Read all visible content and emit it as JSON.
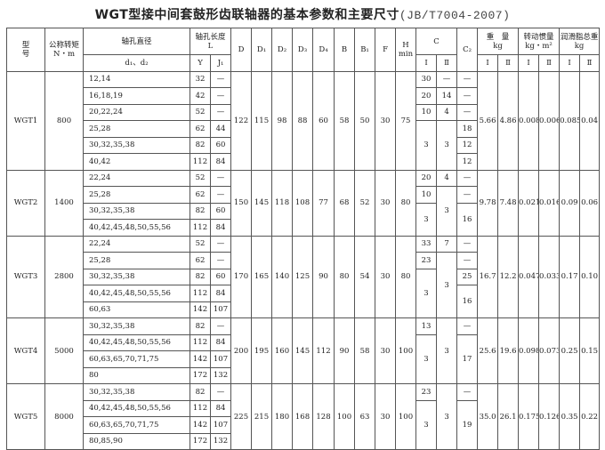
{
  "title": {
    "main": "WGT型接中间套鼓形齿联轴器的基本参数和主要尺寸",
    "code": "(JB/T7004-2007)"
  },
  "header": {
    "model": "型\n号",
    "model_top": "型",
    "model_bottom": "号",
    "torque": "公称转矩",
    "torque_unit": "N・m",
    "bore": "轴孔直径",
    "bore_sub": "d₁、d₂",
    "length": "轴孔长度",
    "length_unit": "L",
    "Y": "Y",
    "J1": "J₁",
    "dims": [
      "D",
      "D₁",
      "D₂",
      "D₃",
      "D₄",
      "B",
      "B₁",
      "F"
    ],
    "H": "H",
    "H_sub": "min",
    "C": "C",
    "C2": "C₂",
    "weight": "重　量",
    "weight_unit": "kg",
    "inertia": "转动惯量",
    "inertia_unit": "kg・m²",
    "grease": "润滑脂总重",
    "grease_unit": "kg",
    "I": "Ⅰ",
    "II": "Ⅱ"
  },
  "groups": [
    {
      "model": "WGT1",
      "torque": "800",
      "bores": [
        {
          "d": "12,14",
          "Y": "32",
          "J": "—"
        },
        {
          "d": "16,18,19",
          "Y": "42",
          "J": "—"
        },
        {
          "d": "20,22,24",
          "Y": "52",
          "J": "—"
        },
        {
          "d": "25,28",
          "Y": "62",
          "J": "44"
        },
        {
          "d": "30,32,35,38",
          "Y": "82",
          "J": "60"
        },
        {
          "d": "40,42",
          "Y": "112",
          "J": "84"
        }
      ],
      "dims": [
        "122",
        "115",
        "98",
        "88",
        "60",
        "58",
        "50",
        "30",
        "75"
      ],
      "C1": [
        {
          "v": "30",
          "s": 1
        },
        {
          "v": "20",
          "s": 1
        },
        {
          "v": "10",
          "s": 1
        },
        {
          "v": "3",
          "s": 3
        }
      ],
      "C2nd": [
        {
          "v": "—",
          "s": 1
        },
        {
          "v": "14",
          "s": 1
        },
        {
          "v": "4",
          "s": 1
        },
        {
          "v": "3",
          "s": 3
        }
      ],
      "Cc2": [
        {
          "v": "—",
          "s": 1
        },
        {
          "v": "—",
          "s": 1
        },
        {
          "v": "—",
          "s": 1
        },
        {
          "v": "18",
          "s": 1
        },
        {
          "v": "12",
          "s": 1
        },
        {
          "v": "12",
          "s": 1
        }
      ],
      "tail": [
        "5.66",
        "4.86",
        "0.008",
        "0.0063",
        "0.085",
        "0.04"
      ]
    },
    {
      "model": "WGT2",
      "torque": "1400",
      "bores": [
        {
          "d": "22,24",
          "Y": "52",
          "J": "—"
        },
        {
          "d": "25,28",
          "Y": "62",
          "J": "—"
        },
        {
          "d": "30,32,35,38",
          "Y": "82",
          "J": "60"
        },
        {
          "d": "40,42,45,48,50,55,56",
          "Y": "112",
          "J": "84"
        }
      ],
      "dims": [
        "150",
        "145",
        "118",
        "108",
        "77",
        "68",
        "52",
        "30",
        "80"
      ],
      "C1": [
        {
          "v": "20",
          "s": 1
        },
        {
          "v": "10",
          "s": 1
        },
        {
          "v": "3",
          "s": 2
        }
      ],
      "C2nd": [
        {
          "v": "4",
          "s": 1
        },
        {
          "v": "3",
          "s": 3
        }
      ],
      "Cc2": [
        {
          "v": "—",
          "s": 1
        },
        {
          "v": "—",
          "s": 1
        },
        {
          "v": "16",
          "s": 2
        }
      ],
      "tail": [
        "9.78",
        "7.48",
        "0.021",
        "0.016",
        "0.09",
        "0.06"
      ]
    },
    {
      "model": "WGT3",
      "torque": "2800",
      "bores": [
        {
          "d": "22,24",
          "Y": "52",
          "J": "—"
        },
        {
          "d": "25,28",
          "Y": "62",
          "J": "—"
        },
        {
          "d": "30,32,35,38",
          "Y": "82",
          "J": "60"
        },
        {
          "d": "40,42,45,48,50,55,56",
          "Y": "112",
          "J": "84"
        },
        {
          "d": "60,63",
          "Y": "142",
          "J": "107"
        }
      ],
      "dims": [
        "170",
        "165",
        "140",
        "125",
        "90",
        "80",
        "54",
        "30",
        "80"
      ],
      "C1": [
        {
          "v": "33",
          "s": 1
        },
        {
          "v": "23",
          "s": 1
        },
        {
          "v": "3",
          "s": 3
        }
      ],
      "C2nd": [
        {
          "v": "7",
          "s": 1
        },
        {
          "v": "3",
          "s": 4
        }
      ],
      "Cc2": [
        {
          "v": "—",
          "s": 1
        },
        {
          "v": "—",
          "s": 1
        },
        {
          "v": "25",
          "s": 1
        },
        {
          "v": "16",
          "s": 2
        }
      ],
      "tail": [
        "16.7",
        "12.2",
        "0.047",
        "0.033",
        "0.17",
        "0.10"
      ]
    },
    {
      "model": "WGT4",
      "torque": "5000",
      "bores": [
        {
          "d": "30,32,35,38",
          "Y": "82",
          "J": "—"
        },
        {
          "d": "40,42,45,48,50,55,56",
          "Y": "112",
          "J": "84"
        },
        {
          "d": "60,63,65,70,71,75",
          "Y": "142",
          "J": "107"
        },
        {
          "d": "80",
          "Y": "172",
          "J": "132"
        }
      ],
      "dims": [
        "200",
        "195",
        "160",
        "145",
        "112",
        "90",
        "58",
        "30",
        "100"
      ],
      "C1": [
        {
          "v": "13",
          "s": 1
        },
        {
          "v": "3",
          "s": 3
        }
      ],
      "C2nd": [
        {
          "v": "3",
          "s": 4
        }
      ],
      "Cc2": [
        {
          "v": "—",
          "s": 1
        },
        {
          "v": "17",
          "s": 3
        }
      ],
      "tail": [
        "25.6",
        "19.6",
        "0.098",
        "0.073",
        "0.25",
        "0.15"
      ]
    },
    {
      "model": "WGT5",
      "torque": "8000",
      "bores": [
        {
          "d": "30,32,35,38",
          "Y": "82",
          "J": "—"
        },
        {
          "d": "40,42,45,48,50,55,56",
          "Y": "112",
          "J": "84"
        },
        {
          "d": "60,63,65,70,71,75",
          "Y": "142",
          "J": "107"
        },
        {
          "d": "80,85,90",
          "Y": "172",
          "J": "132"
        }
      ],
      "dims": [
        "225",
        "215",
        "180",
        "168",
        "128",
        "100",
        "63",
        "30",
        "100"
      ],
      "C1": [
        {
          "v": "23",
          "s": 1
        },
        {
          "v": "3",
          "s": 3
        }
      ],
      "C2nd": [
        {
          "v": "3",
          "s": 4
        }
      ],
      "Cc2": [
        {
          "v": "—",
          "s": 1
        },
        {
          "v": "19",
          "s": 3
        }
      ],
      "tail": [
        "35.0",
        "26.1",
        "0.175",
        "0.126",
        "0.35",
        "0.22"
      ]
    }
  ]
}
